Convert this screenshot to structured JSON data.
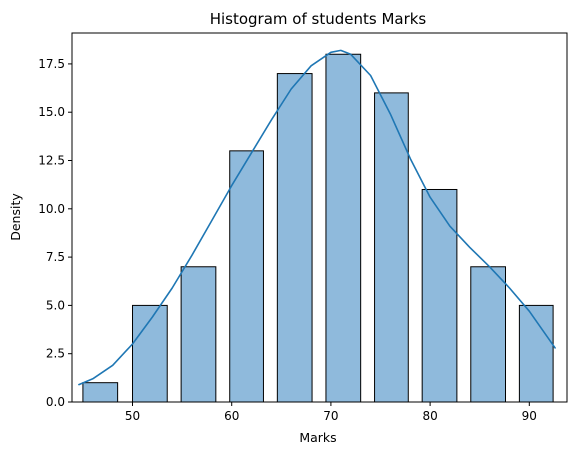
{
  "chart_data": {
    "type": "bar",
    "title": "Histogram of students Marks",
    "xlabel": "Marks",
    "ylabel": "Density",
    "xlim": [
      43.9,
      93.8
    ],
    "ylim": [
      0,
      19.1
    ],
    "x_ticks": [
      50,
      60,
      70,
      80,
      90
    ],
    "y_ticks": [
      "0.0",
      "2.5",
      "5.0",
      "7.5",
      "10.0",
      "12.5",
      "15.0",
      "17.5"
    ],
    "bins": [
      {
        "start": 45.0,
        "end": 48.5,
        "value": 1
      },
      {
        "start": 50.0,
        "end": 53.5,
        "value": 5
      },
      {
        "start": 54.9,
        "end": 58.4,
        "value": 7
      },
      {
        "start": 59.8,
        "end": 63.2,
        "value": 13
      },
      {
        "start": 64.6,
        "end": 68.1,
        "value": 17
      },
      {
        "start": 69.5,
        "end": 73.0,
        "value": 18
      },
      {
        "start": 74.4,
        "end": 77.8,
        "value": 16
      },
      {
        "start": 79.2,
        "end": 82.7,
        "value": 11
      },
      {
        "start": 84.1,
        "end": 87.6,
        "value": 7
      },
      {
        "start": 89.0,
        "end": 92.4,
        "value": 5
      }
    ],
    "kde": {
      "x": [
        44.6,
        46.0,
        48.0,
        50.0,
        52.0,
        54.0,
        56.0,
        58.0,
        60.0,
        62.0,
        64.0,
        66.0,
        68.0,
        70.0,
        71.0,
        72.0,
        74.0,
        76.0,
        78.0,
        80.0,
        82.0,
        84.0,
        86.0,
        88.0,
        90.0,
        92.6
      ],
      "y": [
        0.9,
        1.2,
        1.9,
        3.0,
        4.4,
        5.9,
        7.6,
        9.4,
        11.2,
        12.9,
        14.6,
        16.2,
        17.4,
        18.1,
        18.2,
        18.0,
        16.9,
        14.9,
        12.6,
        10.6,
        9.1,
        8.0,
        7.0,
        5.9,
        4.7,
        2.8
      ]
    },
    "colors": {
      "bar_fill": "#8fbadc",
      "bar_edge": "#000000",
      "kde_line": "#1f77b4"
    },
    "grid": false
  }
}
